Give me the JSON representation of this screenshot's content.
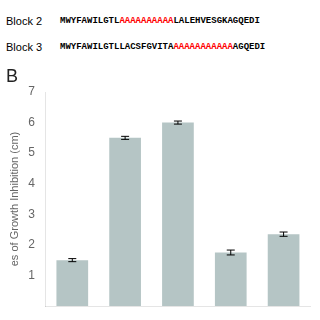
{
  "chart_data": {
    "type": "bar",
    "annotations": [
      {
        "label": "Block 2",
        "segments": [
          {
            "text": "MWYFAWILGTL"
          },
          {
            "text": "AAAAAAAAAA",
            "color": "red"
          },
          {
            "text": "LALEHVESGKAGQEDI"
          }
        ]
      },
      {
        "label": "Block 3",
        "segments": [
          {
            "text": "MWYFAWILGTLLACSFGVITA"
          },
          {
            "text": "AAAAAAAAAAA",
            "color": "red"
          },
          {
            "text": "AGQEDI"
          }
        ]
      },
      {
        "text": "B"
      }
    ],
    "ylabel": "es of Growth Inhibition (cm)",
    "categories": [
      null,
      null,
      null,
      null,
      null
    ],
    "values": [
      1.5,
      5.5,
      6.0,
      1.75,
      2.35
    ],
    "errors": [
      0.05,
      0.05,
      0.05,
      0.08,
      0.07
    ],
    "color": "#b5c5c5",
    "ylim": [
      0,
      7
    ],
    "yticks": [
      1,
      2,
      3,
      4,
      5,
      6,
      7
    ],
    "grid": false,
    "tick_labels": "y"
  }
}
